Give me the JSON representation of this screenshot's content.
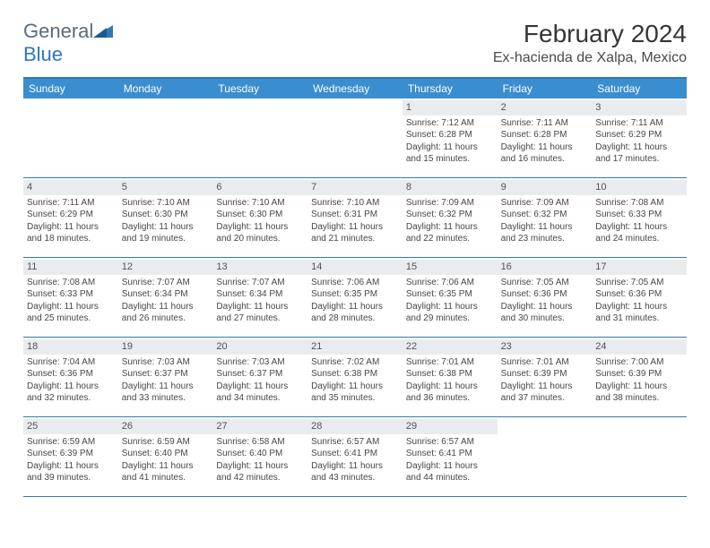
{
  "brand": {
    "part1": "General",
    "part2": "Blue"
  },
  "title": "February 2024",
  "location": "Ex-hacienda de Xalpa, Mexico",
  "colors": {
    "header_bg": "#3a8dcf",
    "border": "#2e78b8",
    "daynum_bg": "#e9ecef",
    "text": "#474747",
    "title": "#363636"
  },
  "day_labels": [
    "Sunday",
    "Monday",
    "Tuesday",
    "Wednesday",
    "Thursday",
    "Friday",
    "Saturday"
  ],
  "weeks": [
    [
      null,
      null,
      null,
      null,
      {
        "n": "1",
        "sr": "7:12 AM",
        "ss": "6:28 PM",
        "dl": "11 hours and 15 minutes."
      },
      {
        "n": "2",
        "sr": "7:11 AM",
        "ss": "6:28 PM",
        "dl": "11 hours and 16 minutes."
      },
      {
        "n": "3",
        "sr": "7:11 AM",
        "ss": "6:29 PM",
        "dl": "11 hours and 17 minutes."
      }
    ],
    [
      {
        "n": "4",
        "sr": "7:11 AM",
        "ss": "6:29 PM",
        "dl": "11 hours and 18 minutes."
      },
      {
        "n": "5",
        "sr": "7:10 AM",
        "ss": "6:30 PM",
        "dl": "11 hours and 19 minutes."
      },
      {
        "n": "6",
        "sr": "7:10 AM",
        "ss": "6:30 PM",
        "dl": "11 hours and 20 minutes."
      },
      {
        "n": "7",
        "sr": "7:10 AM",
        "ss": "6:31 PM",
        "dl": "11 hours and 21 minutes."
      },
      {
        "n": "8",
        "sr": "7:09 AM",
        "ss": "6:32 PM",
        "dl": "11 hours and 22 minutes."
      },
      {
        "n": "9",
        "sr": "7:09 AM",
        "ss": "6:32 PM",
        "dl": "11 hours and 23 minutes."
      },
      {
        "n": "10",
        "sr": "7:08 AM",
        "ss": "6:33 PM",
        "dl": "11 hours and 24 minutes."
      }
    ],
    [
      {
        "n": "11",
        "sr": "7:08 AM",
        "ss": "6:33 PM",
        "dl": "11 hours and 25 minutes."
      },
      {
        "n": "12",
        "sr": "7:07 AM",
        "ss": "6:34 PM",
        "dl": "11 hours and 26 minutes."
      },
      {
        "n": "13",
        "sr": "7:07 AM",
        "ss": "6:34 PM",
        "dl": "11 hours and 27 minutes."
      },
      {
        "n": "14",
        "sr": "7:06 AM",
        "ss": "6:35 PM",
        "dl": "11 hours and 28 minutes."
      },
      {
        "n": "15",
        "sr": "7:06 AM",
        "ss": "6:35 PM",
        "dl": "11 hours and 29 minutes."
      },
      {
        "n": "16",
        "sr": "7:05 AM",
        "ss": "6:36 PM",
        "dl": "11 hours and 30 minutes."
      },
      {
        "n": "17",
        "sr": "7:05 AM",
        "ss": "6:36 PM",
        "dl": "11 hours and 31 minutes."
      }
    ],
    [
      {
        "n": "18",
        "sr": "7:04 AM",
        "ss": "6:36 PM",
        "dl": "11 hours and 32 minutes."
      },
      {
        "n": "19",
        "sr": "7:03 AM",
        "ss": "6:37 PM",
        "dl": "11 hours and 33 minutes."
      },
      {
        "n": "20",
        "sr": "7:03 AM",
        "ss": "6:37 PM",
        "dl": "11 hours and 34 minutes."
      },
      {
        "n": "21",
        "sr": "7:02 AM",
        "ss": "6:38 PM",
        "dl": "11 hours and 35 minutes."
      },
      {
        "n": "22",
        "sr": "7:01 AM",
        "ss": "6:38 PM",
        "dl": "11 hours and 36 minutes."
      },
      {
        "n": "23",
        "sr": "7:01 AM",
        "ss": "6:39 PM",
        "dl": "11 hours and 37 minutes."
      },
      {
        "n": "24",
        "sr": "7:00 AM",
        "ss": "6:39 PM",
        "dl": "11 hours and 38 minutes."
      }
    ],
    [
      {
        "n": "25",
        "sr": "6:59 AM",
        "ss": "6:39 PM",
        "dl": "11 hours and 39 minutes."
      },
      {
        "n": "26",
        "sr": "6:59 AM",
        "ss": "6:40 PM",
        "dl": "11 hours and 41 minutes."
      },
      {
        "n": "27",
        "sr": "6:58 AM",
        "ss": "6:40 PM",
        "dl": "11 hours and 42 minutes."
      },
      {
        "n": "28",
        "sr": "6:57 AM",
        "ss": "6:41 PM",
        "dl": "11 hours and 43 minutes."
      },
      {
        "n": "29",
        "sr": "6:57 AM",
        "ss": "6:41 PM",
        "dl": "11 hours and 44 minutes."
      },
      null,
      null
    ]
  ],
  "labels": {
    "sunrise": "Sunrise: ",
    "sunset": "Sunset: ",
    "daylight": "Daylight: "
  }
}
